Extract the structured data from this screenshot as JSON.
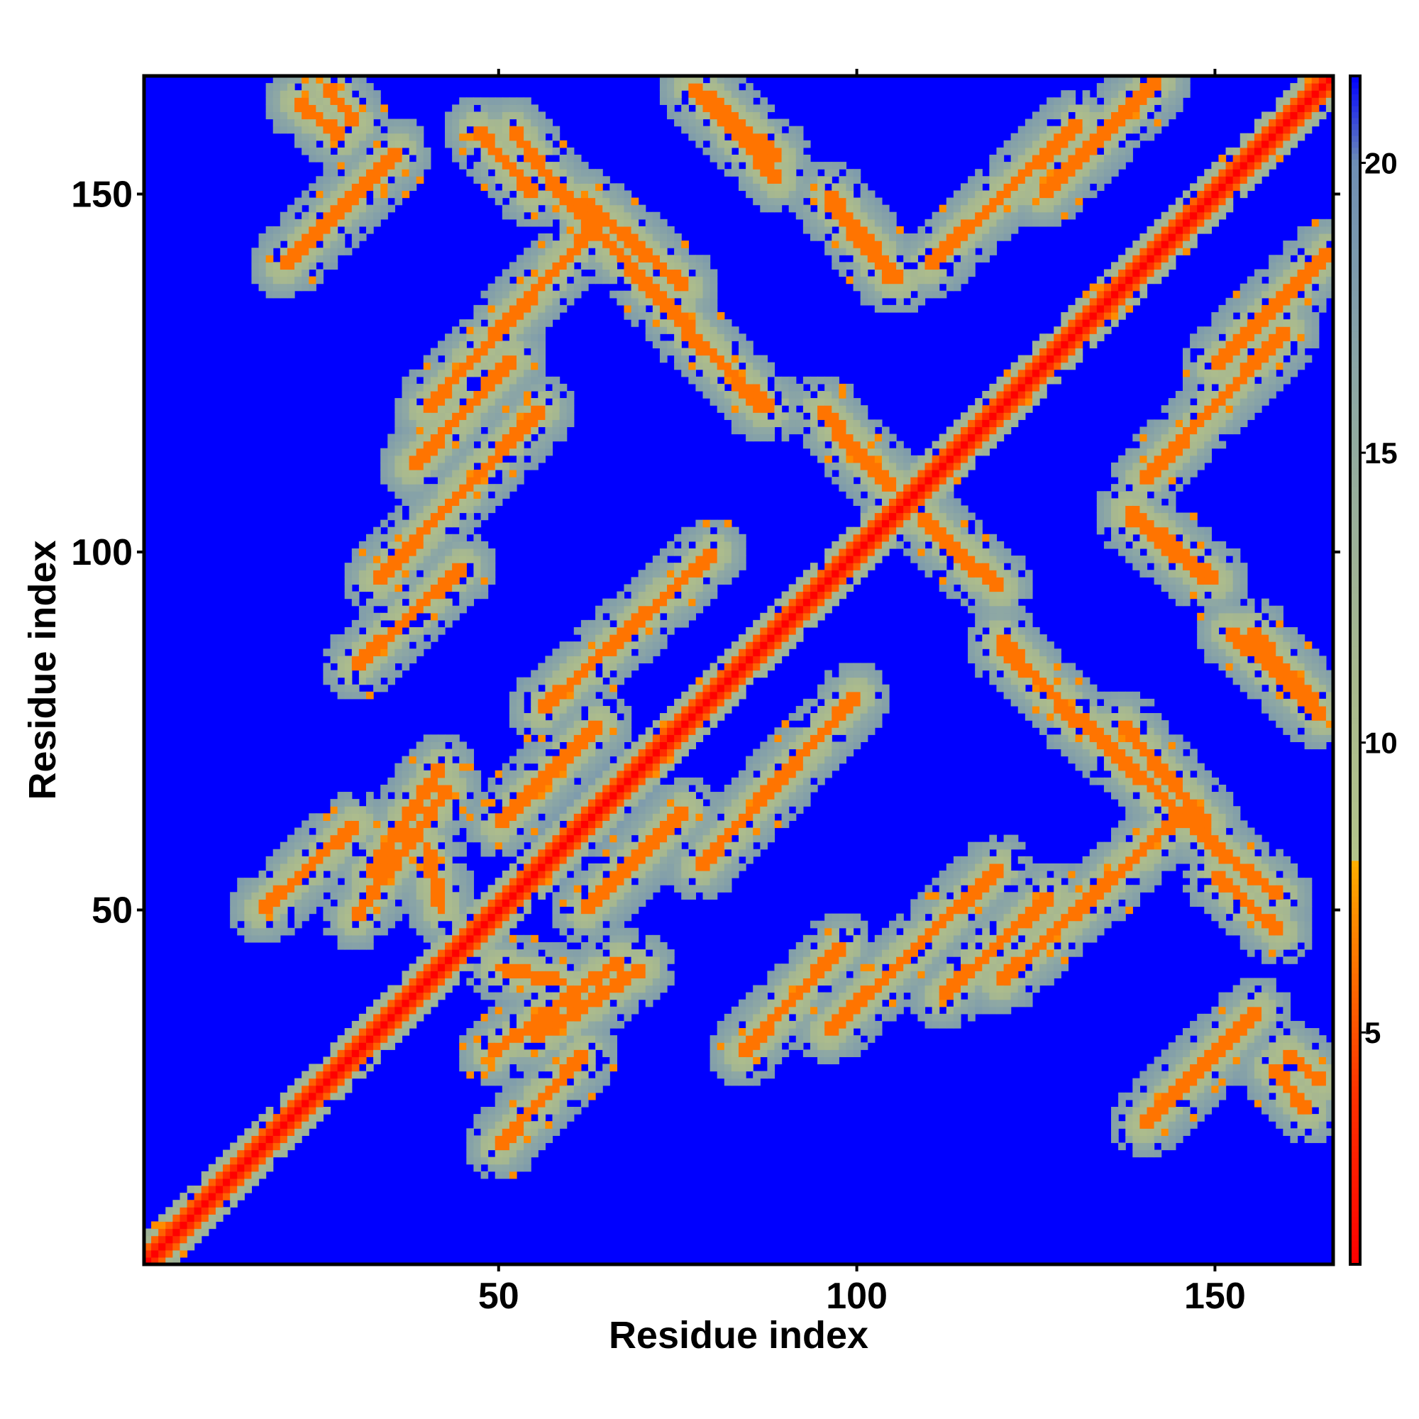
{
  "chart_data": {
    "type": "heatmap",
    "title": "",
    "xlabel": "Residue index",
    "ylabel": "Residue index",
    "n_residues": 166,
    "xlim": [
      1,
      166
    ],
    "ylim": [
      1,
      166
    ],
    "x_ticks": [
      50,
      100,
      150
    ],
    "y_ticks": [
      50,
      100,
      150
    ],
    "x_tick_labels": [
      "50",
      "100",
      "150"
    ],
    "y_tick_labels": [
      "50",
      "100",
      "150"
    ],
    "value_range": [
      1,
      21.5
    ],
    "colorbar": {
      "ticks": [
        5,
        10,
        15,
        20
      ],
      "tick_labels": [
        "5",
        "10",
        "15",
        "20"
      ],
      "stops": [
        {
          "value": 1,
          "color": "#ff0000"
        },
        {
          "value": 4,
          "color": "#ff3300"
        },
        {
          "value": 7,
          "color": "#ff8c00"
        },
        {
          "value": 8,
          "color": "#ffb000"
        },
        {
          "value": 8.01,
          "color": "#b4c48c"
        },
        {
          "value": 11,
          "color": "#a9b98e"
        },
        {
          "value": 16,
          "color": "#8ea8a4"
        },
        {
          "value": 20,
          "color": "#6f8fb4"
        },
        {
          "value": 21.5,
          "color": "#0000ff"
        }
      ]
    },
    "background_value": 21.5,
    "background_color": "#0000ff",
    "grid": false,
    "legend": "right colorbar",
    "diagonal_contacts": true,
    "contact_bands": [
      {
        "type": "anti",
        "from": [
          30,
          49
        ],
        "to": [
          43,
          67
        ]
      },
      {
        "type": "anti",
        "from": [
          55,
          32
        ],
        "to": [
          70,
          42
        ]
      },
      {
        "type": "anti",
        "from": [
          50,
          42
        ],
        "to": [
          59,
          40
        ]
      },
      {
        "type": "anti",
        "from": [
          26,
          165
        ],
        "to": [
          30,
          160
        ]
      },
      {
        "type": "anti",
        "from": [
          52,
          159
        ],
        "to": [
          58,
          151
        ]
      },
      {
        "type": "anti",
        "from": [
          62,
          149
        ],
        "to": [
          76,
          137
        ]
      },
      {
        "type": "anti",
        "from": [
          76,
          131
        ],
        "to": [
          88,
          120
        ]
      },
      {
        "type": "anti",
        "from": [
          79,
          164
        ],
        "to": [
          89,
          155
        ]
      },
      {
        "type": "anti",
        "from": [
          96,
          150
        ],
        "to": [
          106,
          138
        ]
      },
      {
        "type": "anti",
        "from": [
          97,
          117
        ],
        "to": [
          104,
          110
        ]
      },
      {
        "type": "anti",
        "from": [
          109,
          105
        ],
        "to": [
          120,
          95
        ]
      },
      {
        "type": "anti",
        "from": [
          120,
          87
        ],
        "to": [
          151,
          58
        ]
      },
      {
        "type": "anti",
        "from": [
          138,
          105
        ],
        "to": [
          149,
          96
        ]
      },
      {
        "type": "anti",
        "from": [
          152,
          89
        ],
        "to": [
          165,
          77
        ]
      },
      {
        "type": "anti",
        "from": [
          158,
          28
        ],
        "to": [
          163,
          22
        ]
      },
      {
        "type": "anti",
        "from": [
          150,
          55
        ],
        "to": [
          159,
          47
        ]
      },
      {
        "type": "par",
        "from": [
          17,
          50
        ],
        "to": [
          30,
          62
        ]
      },
      {
        "type": "par",
        "from": [
          30,
          84
        ],
        "to": [
          45,
          98
        ]
      },
      {
        "type": "par",
        "from": [
          38,
          112
        ],
        "to": [
          52,
          127
        ]
      },
      {
        "type": "par",
        "from": [
          20,
          140
        ],
        "to": [
          36,
          156
        ]
      },
      {
        "type": "par",
        "from": [
          78,
          56
        ],
        "to": [
          100,
          80
        ]
      },
      {
        "type": "par",
        "from": [
          96,
          33
        ],
        "to": [
          120,
          56
        ]
      },
      {
        "type": "par",
        "from": [
          120,
          40
        ],
        "to": [
          146,
          64
        ]
      },
      {
        "type": "par",
        "from": [
          126,
          150
        ],
        "to": [
          142,
          166
        ]
      },
      {
        "type": "par",
        "from": [
          140,
          110
        ],
        "to": [
          160,
          131
        ]
      },
      {
        "type": "par",
        "from": [
          50,
          62
        ],
        "to": [
          64,
          76
        ]
      }
    ]
  }
}
